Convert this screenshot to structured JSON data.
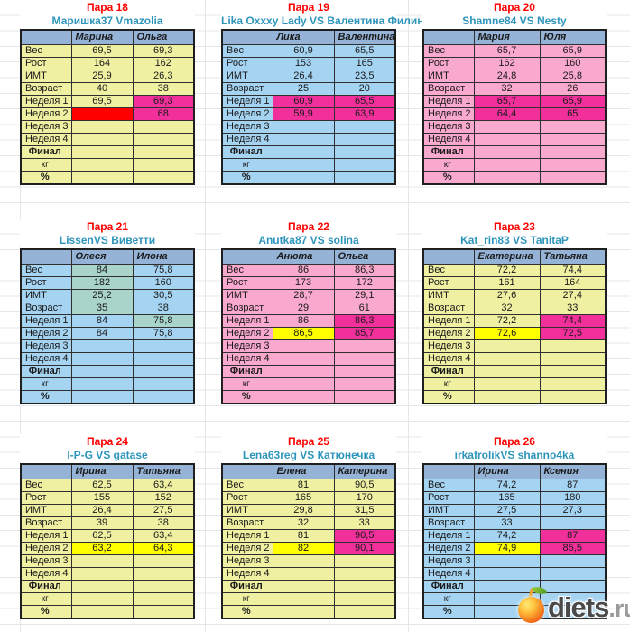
{
  "palette": {
    "header_blue": "#95B3D7",
    "body_yellow": "#F0F0A2",
    "body_blue": "#A5D3F2",
    "body_pink": "#F9A8CE",
    "hl_magenta": "#F1309B",
    "hl_yellow": "#FFFF00",
    "hl_red": "#FF0000",
    "hl_teal": "#A9D4C9",
    "title_red": "#FF0000",
    "subtitle_teal": "#2D95BB",
    "grid_line": "#E4E7EA"
  },
  "row_labels": [
    "Вес",
    "Рост",
    "ИМТ",
    "Возраст",
    "Неделя 1",
    "Неделя 2",
    "Неделя 3",
    "Неделя 4",
    "Финал",
    "кг",
    "%"
  ],
  "pairs": [
    {
      "title": "Пара 18",
      "subtitle": "Маришка37 Vmazolia",
      "theme": "yellow",
      "players": [
        "Марина",
        "Ольга"
      ],
      "values": [
        [
          "69,5",
          "69,3"
        ],
        [
          "164",
          "162"
        ],
        [
          "25,9",
          "26,3"
        ],
        [
          "40",
          "38"
        ],
        [
          "69,5",
          "69,3"
        ],
        [
          "",
          "68"
        ],
        [
          "",
          ""
        ],
        [
          "",
          ""
        ],
        [
          "",
          ""
        ],
        [
          "",
          ""
        ],
        [
          "",
          ""
        ]
      ],
      "styles": [
        [
          "",
          ""
        ],
        [
          "",
          ""
        ],
        [
          "",
          ""
        ],
        [
          "",
          ""
        ],
        [
          "",
          "magenta"
        ],
        [
          "red",
          "magenta"
        ],
        [
          "",
          ""
        ],
        [
          "",
          ""
        ],
        [
          "",
          ""
        ],
        [
          "",
          ""
        ],
        [
          "",
          ""
        ]
      ]
    },
    {
      "title": "Пара 19",
      "subtitle": "Lika Oxxxy Lady VS  Валентина Филина",
      "theme": "blue",
      "players": [
        "Лика",
        "Валентина"
      ],
      "values": [
        [
          "60,9",
          "65,5"
        ],
        [
          "153",
          "165"
        ],
        [
          "26,4",
          "23,5"
        ],
        [
          "25",
          "20"
        ],
        [
          "60,9",
          "65,5"
        ],
        [
          "59,9",
          "63,9"
        ],
        [
          "",
          ""
        ],
        [
          "",
          ""
        ],
        [
          "",
          ""
        ],
        [
          "",
          ""
        ],
        [
          "",
          ""
        ]
      ],
      "styles": [
        [
          "",
          ""
        ],
        [
          "",
          ""
        ],
        [
          "",
          ""
        ],
        [
          "",
          ""
        ],
        [
          "magenta",
          "magenta"
        ],
        [
          "magenta",
          "magenta"
        ],
        [
          "",
          ""
        ],
        [
          "",
          ""
        ],
        [
          "",
          ""
        ],
        [
          "",
          ""
        ],
        [
          "",
          ""
        ]
      ]
    },
    {
      "title": "Пара 20",
      "subtitle": "Shamne84 VS Nesty",
      "theme": "pink",
      "players": [
        "Мария",
        "Юля"
      ],
      "values": [
        [
          "65,7",
          "65,9"
        ],
        [
          "162",
          "160"
        ],
        [
          "24,8",
          "25,8"
        ],
        [
          "32",
          "26"
        ],
        [
          "65,7",
          "65,9"
        ],
        [
          "64,4",
          "65"
        ],
        [
          "",
          ""
        ],
        [
          "",
          ""
        ],
        [
          "",
          ""
        ],
        [
          "",
          ""
        ],
        [
          "",
          ""
        ]
      ],
      "styles": [
        [
          "",
          ""
        ],
        [
          "",
          ""
        ],
        [
          "",
          ""
        ],
        [
          "",
          ""
        ],
        [
          "magenta",
          "magenta"
        ],
        [
          "magenta",
          "magenta"
        ],
        [
          "",
          ""
        ],
        [
          "",
          ""
        ],
        [
          "",
          ""
        ],
        [
          "",
          ""
        ],
        [
          "",
          ""
        ]
      ]
    },
    {
      "title": "Пара 21",
      "subtitle": "LissenVS Виветти",
      "theme": "blue",
      "players": [
        "Олеся",
        "Илона"
      ],
      "values": [
        [
          "84",
          "75,8"
        ],
        [
          "182",
          "160"
        ],
        [
          "25,2",
          "30,5"
        ],
        [
          "35",
          "38"
        ],
        [
          "84",
          "75,8"
        ],
        [
          "84",
          "75,8"
        ],
        [
          "",
          ""
        ],
        [
          "",
          ""
        ],
        [
          "",
          ""
        ],
        [
          "",
          ""
        ],
        [
          "",
          ""
        ]
      ],
      "styles": [
        [
          "teal",
          ""
        ],
        [
          "teal",
          ""
        ],
        [
          "teal",
          ""
        ],
        [
          "teal",
          ""
        ],
        [
          "",
          "teal"
        ],
        [
          "",
          ""
        ],
        [
          "",
          ""
        ],
        [
          "",
          ""
        ],
        [
          "",
          ""
        ],
        [
          "",
          ""
        ],
        [
          "",
          ""
        ]
      ]
    },
    {
      "title": "Пара 22",
      "subtitle": "Anutka87 VS  solina",
      "theme": "pink",
      "players": [
        "Анюта",
        "Ольга"
      ],
      "values": [
        [
          "86",
          "86,3"
        ],
        [
          "173",
          "172"
        ],
        [
          "28,7",
          "29,1"
        ],
        [
          "29",
          "61"
        ],
        [
          "86",
          "86,3"
        ],
        [
          "86,5",
          "85,7"
        ],
        [
          "",
          ""
        ],
        [
          "",
          ""
        ],
        [
          "",
          ""
        ],
        [
          "",
          ""
        ],
        [
          "",
          ""
        ]
      ],
      "styles": [
        [
          "",
          ""
        ],
        [
          "",
          ""
        ],
        [
          "",
          ""
        ],
        [
          "",
          ""
        ],
        [
          "",
          "magenta"
        ],
        [
          "yellow",
          "magenta"
        ],
        [
          "",
          ""
        ],
        [
          "",
          ""
        ],
        [
          "",
          ""
        ],
        [
          "",
          ""
        ],
        [
          "",
          ""
        ]
      ]
    },
    {
      "title": "Пара 23",
      "subtitle": "Kat_rin83 VS  TanitaP",
      "theme": "yellow",
      "players": [
        "Екатерина",
        "Татьяна"
      ],
      "values": [
        [
          "72,2",
          "74,4"
        ],
        [
          "161",
          "164"
        ],
        [
          "27,6",
          "27,4"
        ],
        [
          "32",
          "33"
        ],
        [
          "72,2",
          "74,4"
        ],
        [
          "72,6",
          "72,5"
        ],
        [
          "",
          ""
        ],
        [
          "",
          ""
        ],
        [
          "",
          ""
        ],
        [
          "",
          ""
        ],
        [
          "",
          ""
        ]
      ],
      "styles": [
        [
          "",
          ""
        ],
        [
          "",
          ""
        ],
        [
          "",
          ""
        ],
        [
          "",
          ""
        ],
        [
          "",
          "magenta"
        ],
        [
          "yellow",
          "magenta"
        ],
        [
          "",
          ""
        ],
        [
          "",
          ""
        ],
        [
          "",
          ""
        ],
        [
          "",
          ""
        ],
        [
          "",
          ""
        ]
      ]
    },
    {
      "title": "Пара 24",
      "subtitle": "I-P-G  VS  gatase",
      "theme": "yellow",
      "players": [
        "Ирина",
        "Татьяна"
      ],
      "values": [
        [
          "62,5",
          "63,4"
        ],
        [
          "155",
          "152"
        ],
        [
          "26,4",
          "27,5"
        ],
        [
          "39",
          "38"
        ],
        [
          "62,5",
          "63,4"
        ],
        [
          "63,2",
          "64,3"
        ],
        [
          "",
          ""
        ],
        [
          "",
          ""
        ],
        [
          "",
          ""
        ],
        [
          "",
          ""
        ],
        [
          "",
          ""
        ]
      ],
      "styles": [
        [
          "",
          ""
        ],
        [
          "",
          ""
        ],
        [
          "",
          ""
        ],
        [
          "",
          ""
        ],
        [
          "",
          ""
        ],
        [
          "yellow",
          "yellow"
        ],
        [
          "",
          ""
        ],
        [
          "",
          ""
        ],
        [
          "",
          ""
        ],
        [
          "",
          ""
        ],
        [
          "",
          ""
        ]
      ]
    },
    {
      "title": "Пара 25",
      "subtitle": "Lena63reg VS Катюнечка",
      "theme": "yellow",
      "players": [
        "Елена",
        "Катерина"
      ],
      "values": [
        [
          "81",
          "90,5"
        ],
        [
          "165",
          "170"
        ],
        [
          "29,8",
          "31,5"
        ],
        [
          "32",
          "33"
        ],
        [
          "81",
          "90,5"
        ],
        [
          "82",
          "90,1"
        ],
        [
          "",
          ""
        ],
        [
          "",
          ""
        ],
        [
          "",
          ""
        ],
        [
          "",
          ""
        ],
        [
          "",
          ""
        ]
      ],
      "styles": [
        [
          "",
          ""
        ],
        [
          "",
          ""
        ],
        [
          "",
          ""
        ],
        [
          "",
          ""
        ],
        [
          "",
          "magenta"
        ],
        [
          "yellow",
          "magenta"
        ],
        [
          "",
          ""
        ],
        [
          "",
          ""
        ],
        [
          "",
          ""
        ],
        [
          "",
          ""
        ],
        [
          "",
          ""
        ]
      ]
    },
    {
      "title": "Пара 26",
      "subtitle": "irkafrolikVS shanno4ka",
      "theme": "blue",
      "players": [
        "Ирина",
        "Ксения"
      ],
      "values": [
        [
          "74,2",
          "87"
        ],
        [
          "165",
          "180"
        ],
        [
          "27,5",
          "27,3"
        ],
        [
          "33",
          ""
        ],
        [
          "74,2",
          "87"
        ],
        [
          "74,9",
          "85,5"
        ],
        [
          "",
          ""
        ],
        [
          "",
          ""
        ],
        [
          "",
          ""
        ],
        [
          "",
          ""
        ],
        [
          "",
          ""
        ]
      ],
      "styles": [
        [
          "",
          ""
        ],
        [
          "",
          ""
        ],
        [
          "",
          ""
        ],
        [
          "",
          ""
        ],
        [
          "",
          "magenta"
        ],
        [
          "yellow",
          "magenta"
        ],
        [
          "",
          ""
        ],
        [
          "",
          ""
        ],
        [
          "",
          ""
        ],
        [
          "",
          ""
        ],
        [
          "",
          ""
        ]
      ]
    }
  ],
  "watermark": {
    "brand": "diets",
    "domain": ".ru"
  }
}
